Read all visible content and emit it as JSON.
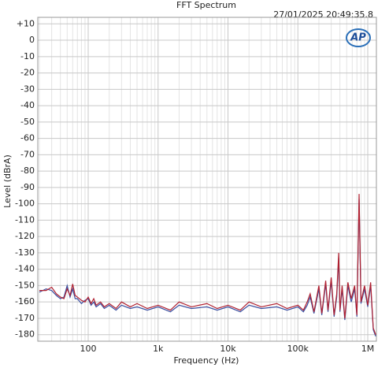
{
  "chart_data": {
    "type": "line",
    "title": "FFT Spectrum",
    "subtitle": "27/01/2025 20:49:35.8",
    "logo": "AP",
    "x_label": "Frequency (Hz)",
    "y_label": "Level (dBrA)",
    "xscale": "log",
    "grid": true,
    "minor_grid": true,
    "xlim": [
      19,
      1330000
    ],
    "ylim": [
      -184,
      14
    ],
    "xticks": [
      {
        "value": 100,
        "label": "100"
      },
      {
        "value": 1000,
        "label": "1k"
      },
      {
        "value": 10000,
        "label": "10k"
      },
      {
        "value": 100000,
        "label": "100k"
      },
      {
        "value": 1000000,
        "label": "1M"
      }
    ],
    "yticks": [
      {
        "value": 10,
        "label": "+10"
      },
      0,
      -10,
      -20,
      -30,
      -40,
      -50,
      -60,
      -70,
      -80,
      -90,
      -100,
      -110,
      -120,
      -130,
      -140,
      -150,
      -160,
      -170,
      -180
    ],
    "x": [
      20,
      25,
      30,
      35,
      40,
      45,
      50,
      55,
      60,
      65,
      70,
      80,
      90,
      100,
      110,
      120,
      130,
      150,
      170,
      200,
      250,
      300,
      400,
      500,
      700,
      1000,
      1500,
      2000,
      3000,
      5000,
      7000,
      10000,
      15000,
      20000,
      30000,
      50000,
      70000,
      100000,
      120000,
      136000,
      150000,
      170000,
      200000,
      220000,
      250000,
      270000,
      300000,
      330000,
      360000,
      384000,
      400000,
      430000,
      470000,
      520000,
      580000,
      650000,
      700000,
      752000,
      800000,
      900000,
      1000000,
      1100000,
      1200000,
      1300000
    ],
    "series": [
      {
        "color": "#3a4fa0",
        "values": [
          -154,
          -152,
          -153,
          -156,
          -158,
          -157,
          -150,
          -157,
          -152,
          -158,
          -158,
          -161,
          -159,
          -158,
          -162,
          -160,
          -163,
          -161,
          -164,
          -162,
          -165,
          -162,
          -164,
          -163,
          -165,
          -163,
          -166,
          -162,
          -164,
          -163,
          -165,
          -163,
          -166,
          -162,
          -164,
          -163,
          -165,
          -163,
          -166,
          -162,
          -157,
          -167,
          -152,
          -168,
          -149,
          -166,
          -147,
          -169,
          -157,
          -133,
          -166,
          -152,
          -171,
          -150,
          -160,
          -152,
          -169,
          -97,
          -161,
          -152,
          -163,
          -150,
          -177,
          -181
        ]
      },
      {
        "color": "#b02030",
        "values": [
          -153,
          -153,
          -151,
          -155,
          -157,
          -158,
          -152,
          -156,
          -149,
          -156,
          -157,
          -159,
          -160,
          -157,
          -161,
          -158,
          -162,
          -160,
          -163,
          -161,
          -164,
          -160,
          -163,
          -161,
          -164,
          -162,
          -165,
          -160,
          -163,
          -161,
          -164,
          -162,
          -165,
          -160,
          -163,
          -161,
          -164,
          -162,
          -165,
          -160,
          -155,
          -166,
          -150,
          -167,
          -147,
          -165,
          -145,
          -168,
          -155,
          -130,
          -165,
          -150,
          -170,
          -148,
          -158,
          -150,
          -168,
          -94,
          -160,
          -150,
          -162,
          -148,
          -176,
          -180
        ]
      }
    ]
  }
}
